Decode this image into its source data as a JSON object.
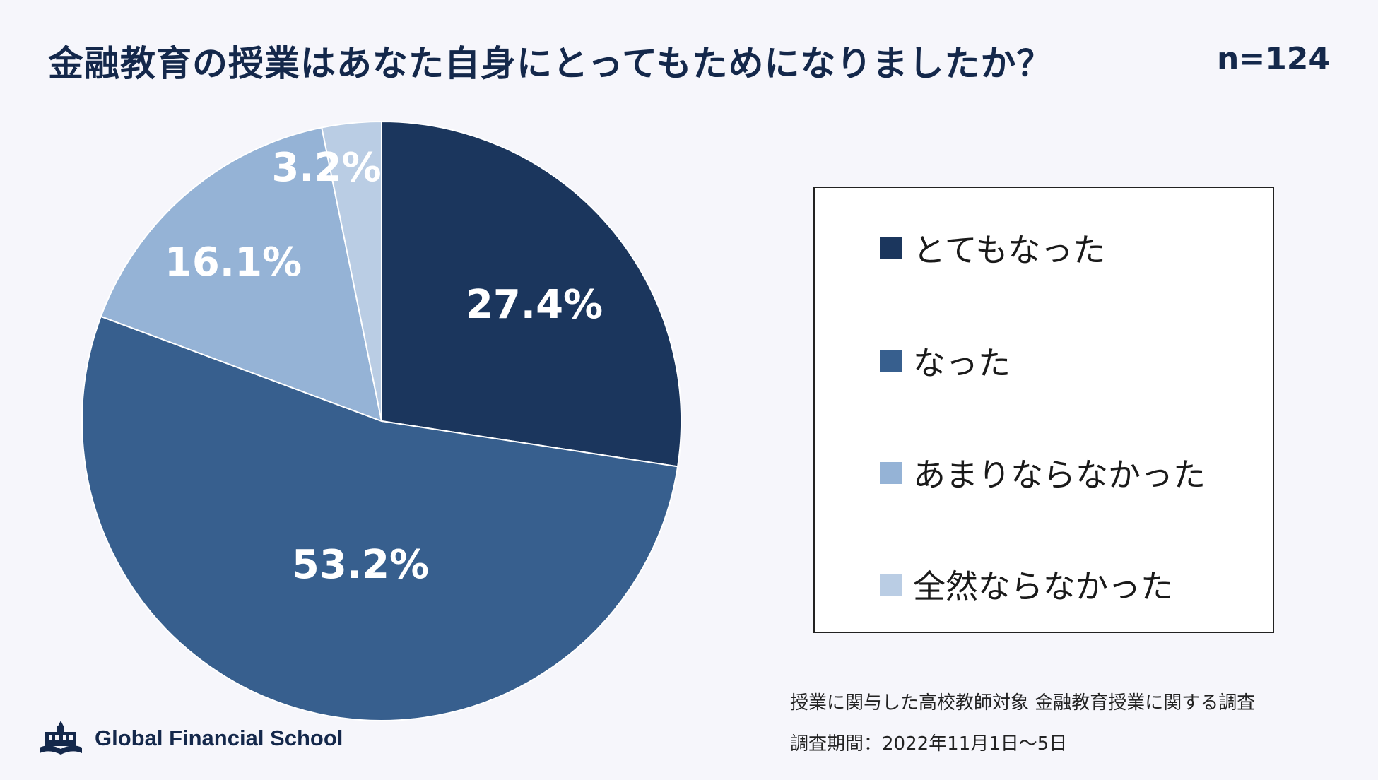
{
  "header": {
    "title": "金融教育の授業はあなた自身にとってもためになりましたか？",
    "sample_size": "n=124"
  },
  "chart_data": {
    "type": "pie",
    "title": "金融教育の授業はあなた自身にとってもためになりましたか？",
    "categories": [
      "とてもなった",
      "なった",
      "あまりならなかった",
      "全然ならなかった"
    ],
    "values": [
      27.4,
      53.2,
      16.1,
      3.2
    ],
    "labels": [
      "27.4%",
      "53.2%",
      "16.1%",
      "3.2%"
    ],
    "colors": [
      "#1b365d",
      "#375f8e",
      "#95b3d6",
      "#bacde4"
    ],
    "start_angle_deg": 0,
    "direction": "clockwise",
    "legend_position": "right"
  },
  "legend": {
    "items": [
      {
        "label": "とてもなった",
        "color": "#1b365d"
      },
      {
        "label": "なった",
        "color": "#375f8e"
      },
      {
        "label": "あまりならなかった",
        "color": "#95b3d6"
      },
      {
        "label": "全然ならなかった",
        "color": "#bacde4"
      }
    ]
  },
  "footer": {
    "survey": "授業に関与した高校教師対象 金融教育授業に関する調査",
    "period": "調査期間：2022年11月1日～5日",
    "brand": "Global Financial School"
  }
}
